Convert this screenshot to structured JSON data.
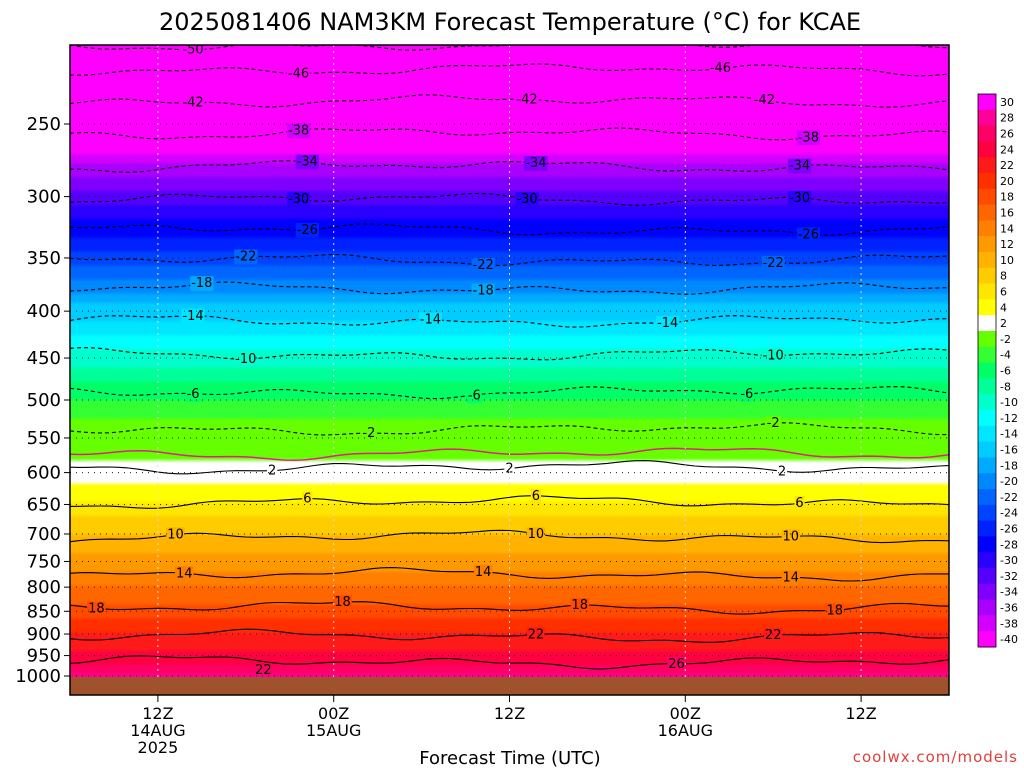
{
  "chart_data": {
    "type": "heatmap",
    "title": "2025081406 NAM3KM Forecast Temperature (°C) for KCAE",
    "xlabel": "Forecast Time (UTC)",
    "ylabel": "",
    "x_ticks": [
      {
        "lines": [
          "12Z",
          "14AUG",
          "2025"
        ]
      },
      {
        "lines": [
          "00Z",
          "15AUG"
        ]
      },
      {
        "lines": [
          "12Z"
        ]
      },
      {
        "lines": [
          "00Z",
          "16AUG"
        ]
      },
      {
        "lines": [
          "12Z"
        ]
      }
    ],
    "y_scale": "log-pressure",
    "y_ticks": [
      250,
      300,
      350,
      400,
      450,
      500,
      550,
      600,
      650,
      700,
      750,
      800,
      850,
      900,
      950,
      1000
    ],
    "ylim": [
      1020,
      200
    ],
    "colorbar": {
      "labels": [
        30,
        28,
        26,
        24,
        22,
        20,
        18,
        16,
        14,
        12,
        10,
        8,
        6,
        4,
        2,
        -2,
        -4,
        -6,
        -8,
        -10,
        -12,
        -14,
        -16,
        -18,
        -20,
        -22,
        -24,
        -26,
        -28,
        -30,
        -32,
        -34,
        -36,
        -38,
        -40
      ],
      "colors": [
        "#ff00ff",
        "#ff0099",
        "#ff0066",
        "#ff0040",
        "#ff1a1a",
        "#ff2f00",
        "#ff4a00",
        "#ff6600",
        "#ff7f00",
        "#ff9900",
        "#ffb300",
        "#ffcc00",
        "#ffe600",
        "#ffff00",
        "#ffffff",
        "#66ff00",
        "#33ff33",
        "#00ff66",
        "#00ff99",
        "#00ffcc",
        "#00ffff",
        "#00e6ff",
        "#00ccff",
        "#00aaff",
        "#0088ff",
        "#0066ff",
        "#0044ff",
        "#0022ff",
        "#0000ff",
        "#2a00ff",
        "#5500ff",
        "#7f00ff",
        "#aa00ff",
        "#d400ff",
        "#ff00ff"
      ]
    },
    "temperature_profile": [
      {
        "p": 200,
        "t": -54
      },
      {
        "p": 250,
        "t": -42
      },
      {
        "p": 300,
        "t": -31
      },
      {
        "p": 350,
        "t": -23
      },
      {
        "p": 400,
        "t": -15
      },
      {
        "p": 450,
        "t": -9
      },
      {
        "p": 500,
        "t": -4
      },
      {
        "p": 550,
        "t": 0
      },
      {
        "p": 600,
        "t": 3
      },
      {
        "p": 650,
        "t": 6.5
      },
      {
        "p": 700,
        "t": 10
      },
      {
        "p": 750,
        "t": 13
      },
      {
        "p": 800,
        "t": 16
      },
      {
        "p": 850,
        "t": 19
      },
      {
        "p": 900,
        "t": 22
      },
      {
        "p": 950,
        "t": 24.5
      },
      {
        "p": 1000,
        "t": 28
      }
    ],
    "contours": [
      {
        "value": -50,
        "label": "50",
        "dashed": true,
        "pressure": 205,
        "label_times": [
          0.14
        ]
      },
      {
        "value": -46,
        "label": "46",
        "dashed": true,
        "pressure": 218,
        "label_times": [
          0.26,
          0.74
        ]
      },
      {
        "value": -42,
        "label": "42",
        "dashed": true,
        "pressure": 236,
        "label_times": [
          0.14,
          0.52,
          0.79
        ]
      },
      {
        "value": -38,
        "label": "38",
        "dashed": true,
        "pressure": 256,
        "label_times": [
          0.26,
          0.84
        ]
      },
      {
        "value": -34,
        "label": "34",
        "dashed": true,
        "pressure": 278,
        "label_times": [
          0.27,
          0.53,
          0.83
        ]
      },
      {
        "value": -30,
        "label": "30",
        "dashed": true,
        "pressure": 302,
        "label_times": [
          0.26,
          0.52,
          0.83
        ]
      },
      {
        "value": -26,
        "label": "26",
        "dashed": true,
        "pressure": 326,
        "label_times": [
          0.27,
          0.84
        ]
      },
      {
        "value": -22,
        "label": "22",
        "dashed": true,
        "pressure": 352,
        "label_times": [
          0.2,
          0.47,
          0.8
        ]
      },
      {
        "value": -18,
        "label": "18",
        "dashed": true,
        "pressure": 378,
        "label_times": [
          0.15,
          0.47
        ]
      },
      {
        "value": -14,
        "label": "14",
        "dashed": true,
        "pressure": 410,
        "label_times": [
          0.14,
          0.41,
          0.68
        ]
      },
      {
        "value": -10,
        "label": "10",
        "dashed": true,
        "pressure": 446,
        "label_times": [
          0.2,
          0.8
        ]
      },
      {
        "value": -6,
        "label": "6",
        "dashed": true,
        "pressure": 490,
        "label_times": [
          0.14,
          0.46,
          0.77
        ]
      },
      {
        "value": -2,
        "label": "2",
        "dashed": true,
        "pressure": 538,
        "label_times": [
          0.34,
          0.8
        ]
      },
      {
        "value": 0,
        "label": "",
        "dashed": false,
        "pressure": 572,
        "label_times": [],
        "color": "#e0208a"
      },
      {
        "value": 2,
        "label": "2",
        "dashed": false,
        "pressure": 592,
        "label_times": [
          0.23,
          0.5,
          0.81
        ]
      },
      {
        "value": 6,
        "label": "6",
        "dashed": false,
        "pressure": 646,
        "label_times": [
          0.27,
          0.53,
          0.83
        ]
      },
      {
        "value": 10,
        "label": "10",
        "dashed": false,
        "pressure": 705,
        "label_times": [
          0.12,
          0.53,
          0.82
        ]
      },
      {
        "value": 14,
        "label": "14",
        "dashed": false,
        "pressure": 775,
        "label_times": [
          0.13,
          0.47,
          0.82
        ]
      },
      {
        "value": 18,
        "label": "18",
        "dashed": false,
        "pressure": 842,
        "label_times": [
          0.03,
          0.31,
          0.58,
          0.87
        ]
      },
      {
        "value": 22,
        "label": "22",
        "dashed": false,
        "pressure": 905,
        "label_times": [
          0.53,
          0.8
        ]
      },
      {
        "value": 26,
        "label": "26",
        "dashed": false,
        "pressure": 965,
        "label_times": [
          0.69
        ]
      }
    ],
    "extra_labels": [
      {
        "text": "22",
        "time": 0.22,
        "pressure": 985
      }
    ],
    "ground_color": "#a0522d",
    "grid": true
  },
  "credit": "coolwx.com/models"
}
